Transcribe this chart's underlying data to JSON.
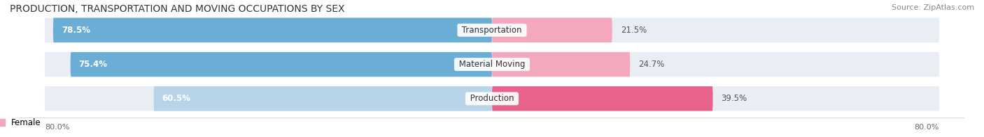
{
  "title": "PRODUCTION, TRANSPORTATION AND MOVING OCCUPATIONS BY SEX",
  "source": "Source: ZipAtlas.com",
  "categories": [
    "Transportation",
    "Material Moving",
    "Production"
  ],
  "male_values": [
    78.5,
    75.4,
    60.5
  ],
  "female_values": [
    21.5,
    24.7,
    39.5
  ],
  "male_colors": [
    "#6aaed6",
    "#6aaed6",
    "#b8d4e8"
  ],
  "female_colors": [
    "#f4a8be",
    "#f4a8be",
    "#e8638a"
  ],
  "bg_bar_color": "#e8eef4",
  "axis_label_left": "80.0%",
  "axis_label_right": "80.0%",
  "background_color": "#ffffff",
  "title_fontsize": 10,
  "source_fontsize": 8,
  "bar_label_fontsize": 8.5,
  "category_fontsize": 8.5,
  "legend_male_color": "#6aaed6",
  "legend_female_color": "#f4a8be"
}
